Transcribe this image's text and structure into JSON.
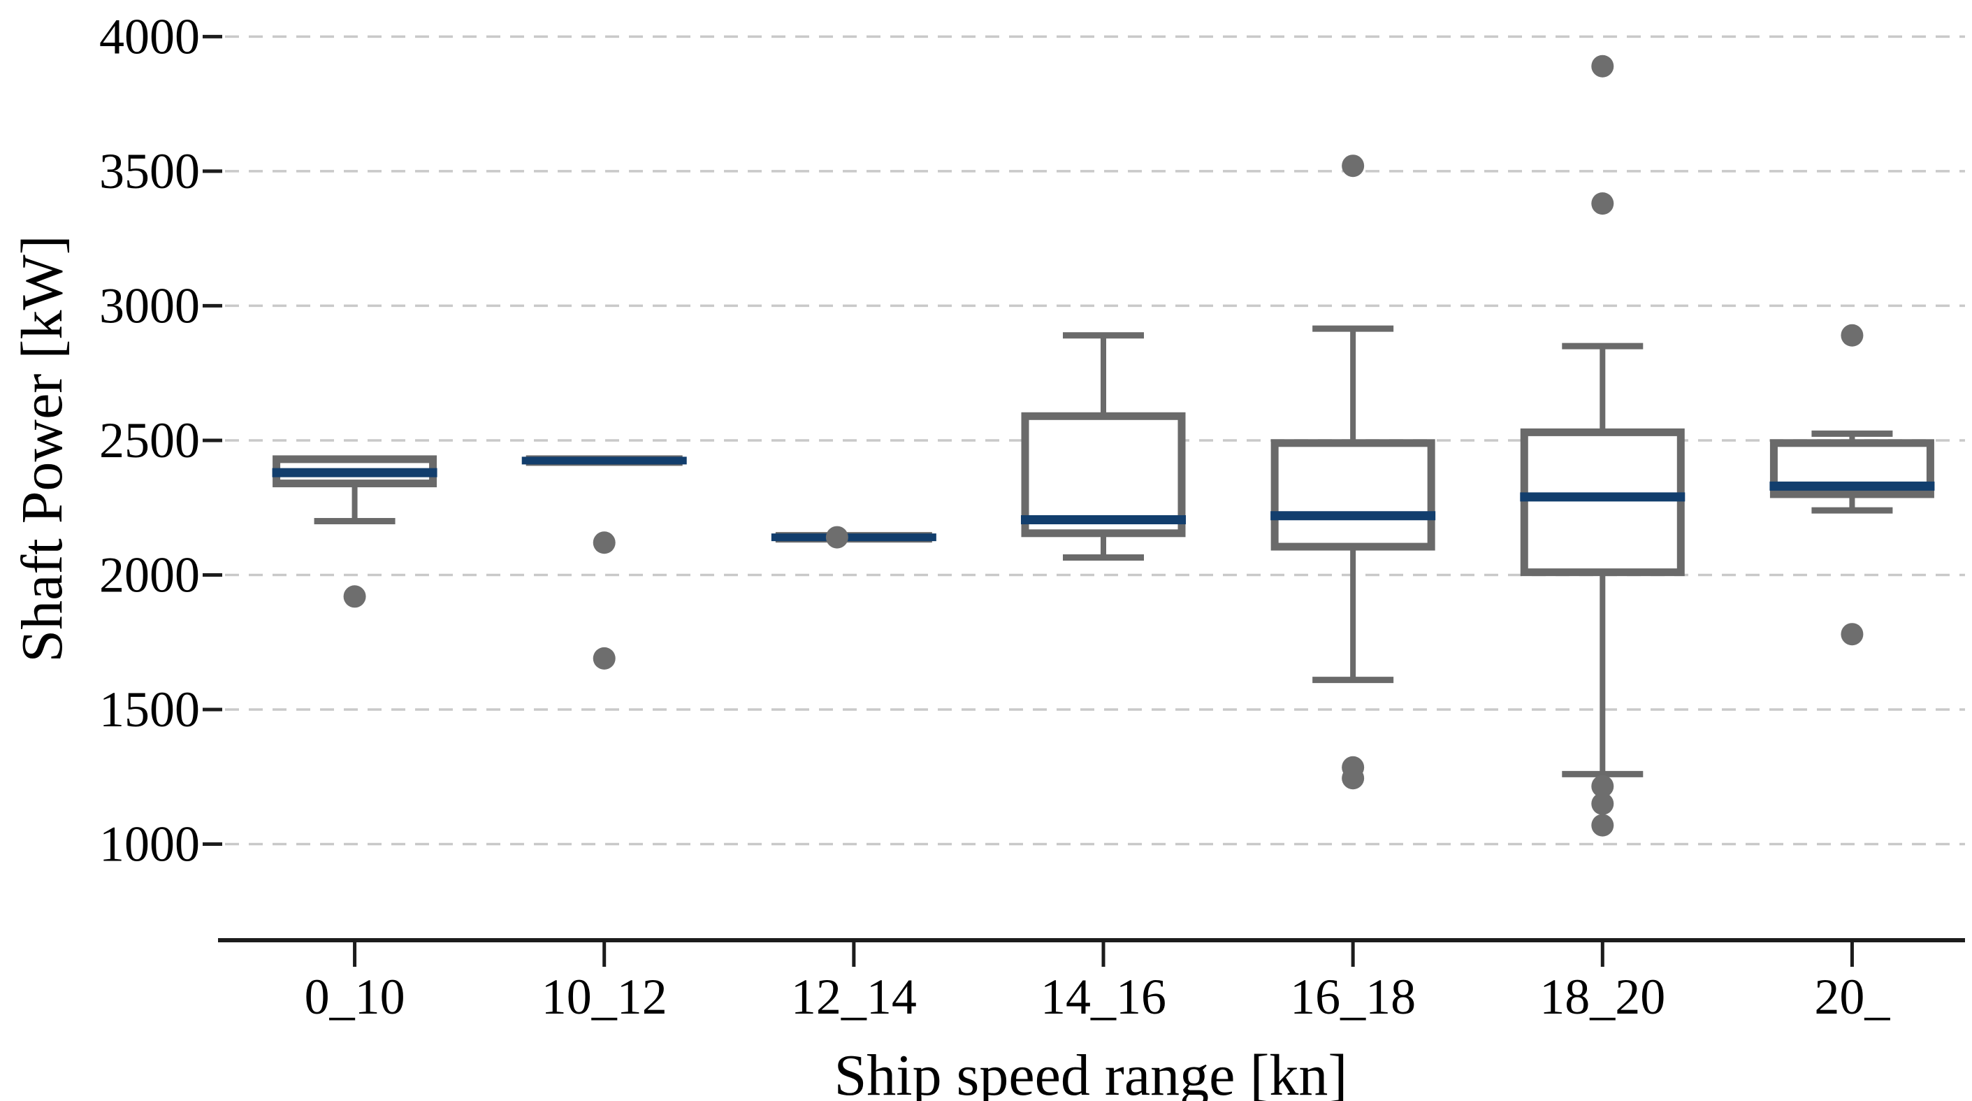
{
  "page": {
    "background": "#ffffff"
  },
  "chart_data": {
    "type": "boxplot",
    "title": "",
    "xlabel": "Ship speed range [kn]",
    "ylabel": "Shaft Power [kW]",
    "categories": [
      "0_10",
      "10_12",
      "12_14",
      "14_16",
      "16_18",
      "18_20",
      "20_"
    ],
    "yticks": [
      1000,
      1500,
      2000,
      2500,
      3000,
      3500,
      4000
    ],
    "ytick_labels": [
      "1000",
      "1500",
      "2000",
      "2500",
      "3000",
      "3500",
      "4000"
    ],
    "ylim": [
      643,
      4136
    ],
    "grid": "horizontal-dashed",
    "legend": "none",
    "boxes": [
      {
        "category": "0_10",
        "whislo": 2200,
        "q1": 2340,
        "med": 2380,
        "q3": 2430,
        "whishi": 2430,
        "fliers": [
          1920
        ]
      },
      {
        "category": "10_12",
        "whislo": 2425,
        "q1": 2425,
        "med": 2425,
        "q3": 2425,
        "whishi": 2425,
        "fliers": [
          2120,
          1690
        ]
      },
      {
        "category": "12_14",
        "whislo": 2140,
        "q1": 2140,
        "med": 2140,
        "q3": 2140,
        "whishi": 2140,
        "fliers": [
          2140
        ],
        "flier_dx": [
          -24
        ]
      },
      {
        "category": "14_16",
        "whislo": 2065,
        "q1": 2155,
        "med": 2205,
        "q3": 2590,
        "whishi": 2890,
        "fliers": []
      },
      {
        "category": "16_18",
        "whislo": 1610,
        "q1": 2105,
        "med": 2220,
        "q3": 2490,
        "whishi": 2915,
        "fliers": [
          3520,
          1285,
          1245
        ]
      },
      {
        "category": "18_20",
        "whislo": 1260,
        "q1": 2010,
        "med": 2290,
        "q3": 2530,
        "whishi": 2850,
        "fliers": [
          3890,
          3380,
          1215,
          1150,
          1070
        ]
      },
      {
        "category": "20_",
        "whislo": 2240,
        "q1": 2300,
        "med": 2330,
        "q3": 2490,
        "whishi": 2525,
        "fliers": [
          2890,
          1780
        ]
      }
    ],
    "colors": {
      "median": "#123e6d",
      "box": "#6a6a6a",
      "whisker": "#6a6a6a",
      "flier": "#6e6e6e",
      "grid": "#c9c9c9",
      "axis": "#1c1c1c",
      "text": "#000000"
    }
  }
}
